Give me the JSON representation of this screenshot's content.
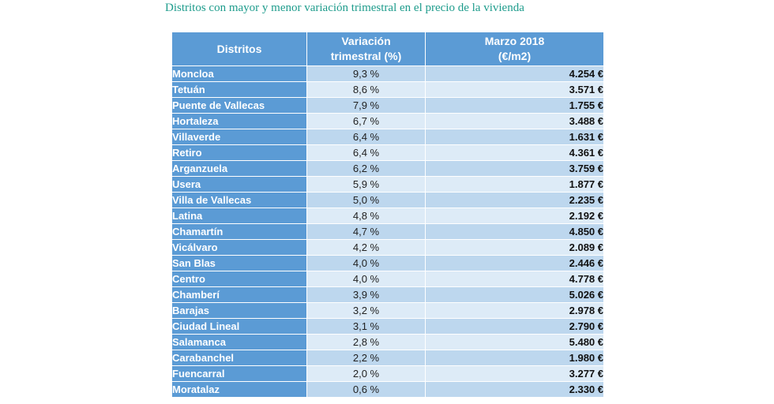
{
  "title": "Distritos con mayor y menor variación trimestral en el precio de la vivienda",
  "headers": {
    "district": "Distritos",
    "variation_line1": "Variación",
    "variation_line2": "trimestral (%)",
    "price_line1": "Marzo 2018",
    "price_line2": "(€/m2)"
  },
  "rows": [
    {
      "district": "Moncloa",
      "variation": "9,3 %",
      "price": "4.254 €"
    },
    {
      "district": "Tetuán",
      "variation": "8,6 %",
      "price": "3.571 €"
    },
    {
      "district": "Puente de Vallecas",
      "variation": "7,9 %",
      "price": "1.755 €"
    },
    {
      "district": "Hortaleza",
      "variation": "6,7 %",
      "price": "3.488 €"
    },
    {
      "district": "Villaverde",
      "variation": "6,4 %",
      "price": "1.631 €"
    },
    {
      "district": "Retiro",
      "variation": "6,4 %",
      "price": "4.361 €"
    },
    {
      "district": "Arganzuela",
      "variation": "6,2 %",
      "price": "3.759 €"
    },
    {
      "district": "Usera",
      "variation": "5,9 %",
      "price": "1.877 €"
    },
    {
      "district": "Villa de Vallecas",
      "variation": "5,0 %",
      "price": "2.235 €"
    },
    {
      "district": "Latina",
      "variation": "4,8 %",
      "price": "2.192 €"
    },
    {
      "district": "Chamartín",
      "variation": "4,7 %",
      "price": "4.850 €"
    },
    {
      "district": "Vicálvaro",
      "variation": "4,2 %",
      "price": "2.089 €"
    },
    {
      "district": "San Blas",
      "variation": "4,0 %",
      "price": "2.446 €"
    },
    {
      "district": "Centro",
      "variation": "4,0 %",
      "price": "4.778 €"
    },
    {
      "district": "Chamberí",
      "variation": "3,9 %",
      "price": "5.026 €"
    },
    {
      "district": "Barajas",
      "variation": "3,2 %",
      "price": "2.978 €"
    },
    {
      "district": "Ciudad Lineal",
      "variation": "3,1 %",
      "price": "2.790 €"
    },
    {
      "district": "Salamanca",
      "variation": "2,8 %",
      "price": "5.480 €"
    },
    {
      "district": "Carabanchel",
      "variation": "2,2 %",
      "price": "1.980 €"
    },
    {
      "district": "Fuencarral",
      "variation": "2,0 %",
      "price": "3.277 €"
    },
    {
      "district": "Moratalaz",
      "variation": "0,6 %",
      "price": "2.330 €"
    }
  ]
}
